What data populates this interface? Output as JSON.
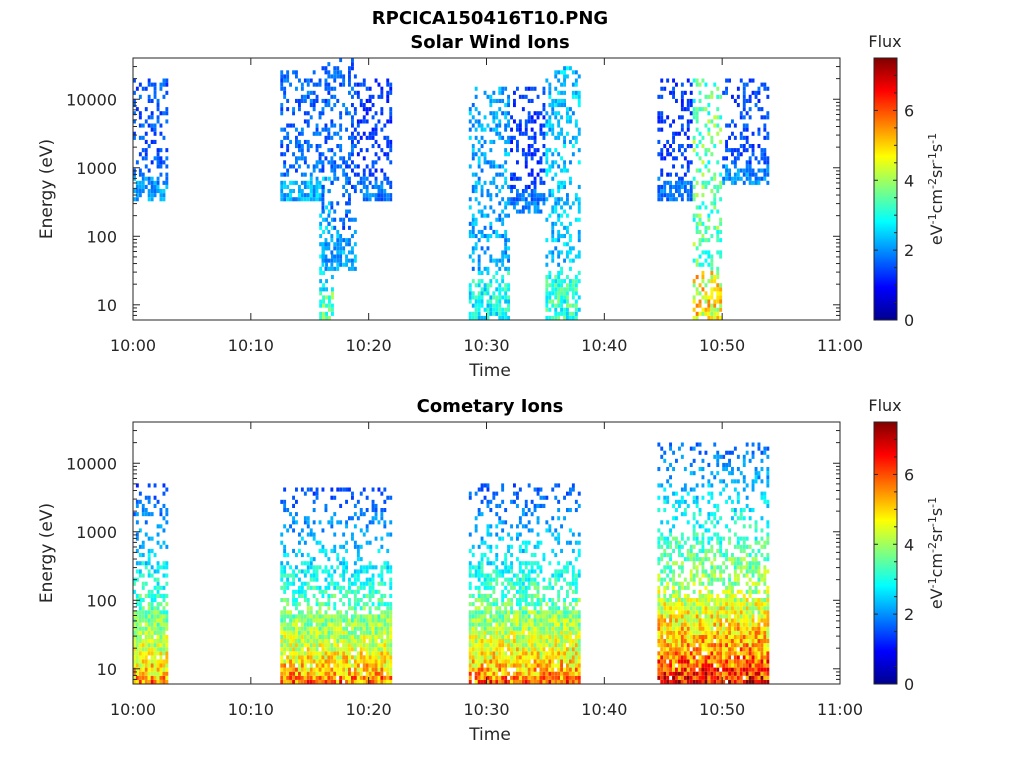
{
  "figure": {
    "title": "RPCICA150416T10.PNG"
  },
  "colorbar": {
    "label": "Flux",
    "units": "eV-1cm-2sr-1s-1",
    "ticks": [
      "0",
      "2",
      "4",
      "6"
    ],
    "range": [
      0,
      7.5
    ],
    "colormap": "jet"
  },
  "chart_data": [
    {
      "type": "heatmap",
      "title": "Solar Wind Ions",
      "xlabel": "Time",
      "ylabel": "Energy (eV)",
      "x_ticks": [
        "10:00",
        "10:10",
        "10:20",
        "10:30",
        "10:40",
        "10:50",
        "11:00"
      ],
      "y_ticks": [
        "10",
        "100",
        "1000",
        "10000"
      ],
      "y_scale": "log",
      "xlim_minutes": [
        0,
        60
      ],
      "ylim": [
        6,
        40000
      ],
      "bursts": [
        {
          "t_start_min": 0.0,
          "t_end_min": 3.0,
          "e_low": 300,
          "e_high": 20000,
          "flux_peak": 2.3
        },
        {
          "t_start_min": 12.5,
          "t_end_min": 16.0,
          "e_low": 300,
          "e_high": 25000,
          "flux_peak": 2.5
        },
        {
          "t_start_min": 15.8,
          "t_end_min": 17.0,
          "e_low": 6,
          "e_high": 700,
          "flux_peak": 3.8
        },
        {
          "t_start_min": 16.0,
          "t_end_min": 19.0,
          "e_low": 30,
          "e_high": 35000,
          "flux_peak": 2.4
        },
        {
          "t_start_min": 19.0,
          "t_end_min": 22.0,
          "e_low": 300,
          "e_high": 20000,
          "flux_peak": 2.0
        },
        {
          "t_start_min": 28.5,
          "t_end_min": 32.0,
          "e_low": 6,
          "e_high": 15000,
          "flux_peak": 3.2
        },
        {
          "t_start_min": 32.0,
          "t_end_min": 35.0,
          "e_low": 200,
          "e_high": 15000,
          "flux_peak": 2.0
        },
        {
          "t_start_min": 35.0,
          "t_end_min": 38.0,
          "e_low": 6,
          "e_high": 30000,
          "flux_peak": 3.5
        },
        {
          "t_start_min": 44.5,
          "t_end_min": 47.5,
          "e_low": 300,
          "e_high": 20000,
          "flux_peak": 2.0
        },
        {
          "t_start_min": 47.5,
          "t_end_min": 50.0,
          "e_low": 6,
          "e_high": 20000,
          "flux_peak": 5.2
        },
        {
          "t_start_min": 50.0,
          "t_end_min": 54.0,
          "e_low": 500,
          "e_high": 20000,
          "flux_peak": 2.2
        }
      ]
    },
    {
      "type": "heatmap",
      "title": "Cometary Ions",
      "xlabel": "Time",
      "ylabel": "Energy (eV)",
      "x_ticks": [
        "10:00",
        "10:10",
        "10:20",
        "10:30",
        "10:40",
        "10:50",
        "11:00"
      ],
      "y_ticks": [
        "10",
        "100",
        "1000",
        "10000"
      ],
      "y_scale": "log",
      "xlim_minutes": [
        0,
        60
      ],
      "ylim": [
        6,
        40000
      ],
      "bursts": [
        {
          "t_start_min": 0.0,
          "t_end_min": 3.0,
          "e_low": 6,
          "e_high": 5000,
          "flux_peak": 6.0
        },
        {
          "t_start_min": 12.5,
          "t_end_min": 22.0,
          "e_low": 6,
          "e_high": 4000,
          "flux_peak": 6.2
        },
        {
          "t_start_min": 28.5,
          "t_end_min": 38.0,
          "e_low": 6,
          "e_high": 5000,
          "flux_peak": 6.3
        },
        {
          "t_start_min": 44.5,
          "t_end_min": 54.0,
          "e_low": 6,
          "e_high": 20000,
          "flux_peak": 7.2
        }
      ]
    }
  ]
}
